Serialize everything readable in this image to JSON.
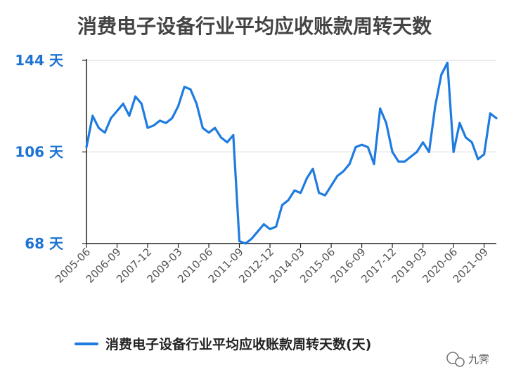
{
  "chart_data": {
    "type": "line",
    "title": "消费电子设备行业平均应收账款周转天数",
    "yticks": [
      {
        "value": 144,
        "label": "144 天"
      },
      {
        "value": 106,
        "label": "106 天"
      },
      {
        "value": 68,
        "label": "68 天"
      }
    ],
    "ylim": [
      68,
      144
    ],
    "grid": true,
    "legend_position": "bottom",
    "x_tick_labels": [
      "2005-06",
      "2006-09",
      "2007-12",
      "2009-03",
      "2010-06",
      "2011-09",
      "2012-12",
      "2014-03",
      "2015-06",
      "2016-09",
      "2017-12",
      "2019-03",
      "2020-06",
      "2021-09"
    ],
    "series": [
      {
        "name": "消费电子设备行业平均应收账款周转天数(天)",
        "color": "#1e7be0",
        "x": [
          "2005-06",
          "2005-09",
          "2005-12",
          "2006-03",
          "2006-06",
          "2006-09",
          "2006-12",
          "2007-03",
          "2007-06",
          "2007-09",
          "2007-12",
          "2008-03",
          "2008-06",
          "2008-09",
          "2008-12",
          "2009-03",
          "2009-06",
          "2009-09",
          "2009-12",
          "2010-03",
          "2010-06",
          "2010-09",
          "2010-12",
          "2011-03",
          "2011-06",
          "2011-09",
          "2011-12",
          "2012-03",
          "2012-06",
          "2012-09",
          "2012-12",
          "2013-03",
          "2013-06",
          "2013-09",
          "2013-12",
          "2014-03",
          "2014-06",
          "2014-09",
          "2014-12",
          "2015-03",
          "2015-06",
          "2015-09",
          "2015-12",
          "2016-03",
          "2016-06",
          "2016-09",
          "2016-12",
          "2017-03",
          "2017-06",
          "2017-09",
          "2017-12",
          "2018-03",
          "2018-06",
          "2018-09",
          "2018-12",
          "2019-03",
          "2019-06",
          "2019-09",
          "2019-12",
          "2020-03",
          "2020-06",
          "2020-09",
          "2020-12",
          "2021-03",
          "2021-06",
          "2021-09",
          "2021-12",
          "2022-03"
        ],
        "values": [
          108,
          121,
          116,
          114,
          120,
          123,
          126,
          121,
          129,
          126,
          116,
          117,
          119,
          118,
          120,
          125,
          133,
          132,
          126,
          116,
          114,
          116,
          112,
          110,
          113,
          69,
          68,
          70,
          73,
          76,
          74,
          75,
          84,
          86,
          90,
          89,
          95,
          99,
          89,
          88,
          92,
          96,
          98,
          101,
          108,
          109,
          108,
          101,
          124,
          118,
          106,
          102,
          102,
          104,
          106,
          110,
          106,
          125,
          138,
          143,
          106,
          118,
          112,
          110,
          103,
          105,
          122,
          120
        ]
      }
    ]
  },
  "watermark": {
    "icon": "wechat-icon",
    "text": "九霁"
  }
}
